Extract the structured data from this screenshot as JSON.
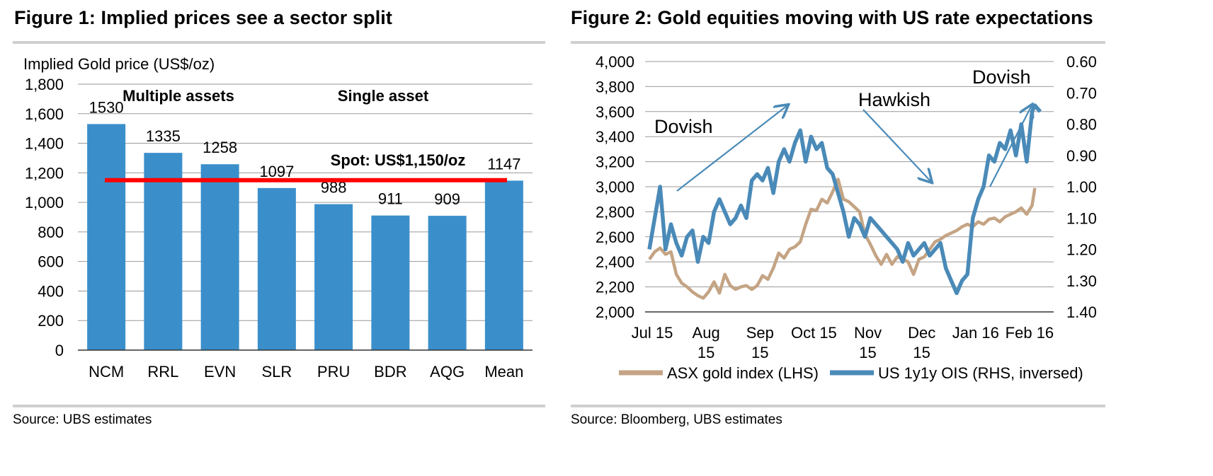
{
  "figure1": {
    "title": "Figure 1: Implied prices see a sector split",
    "source": "Source:  UBS estimates",
    "chart_data": {
      "type": "bar",
      "title": "Figure 1: Implied prices see a sector split",
      "ylabel": "Implied Gold price (US$/oz)",
      "xlabel": "",
      "ylim": [
        0,
        1800
      ],
      "yticks": [
        0,
        200,
        400,
        600,
        800,
        1000,
        1200,
        1400,
        1600,
        1800
      ],
      "ytick_labels": [
        "0",
        "200",
        "400",
        "600",
        "800",
        "1,000",
        "1,200",
        "1,400",
        "1,600",
        "1,800"
      ],
      "categories": [
        "NCM",
        "RRL",
        "EVN",
        "SLR",
        "PRU",
        "BDR",
        "AQG",
        "Mean"
      ],
      "values": [
        1530,
        1335,
        1258,
        1097,
        988,
        911,
        909,
        1147
      ],
      "value_labels": [
        "1530",
        "1335",
        "1258",
        "1097",
        "988",
        "911",
        "909",
        "1147"
      ],
      "bar_color": "#3a8fcb",
      "grid": true,
      "annotations": {
        "group1": "Multiple assets",
        "group2": "Single asset",
        "spot_label": "Spot: US$1,150/oz",
        "spot_value": 1150,
        "spot_color": "#ff0000"
      }
    }
  },
  "figure2": {
    "title": "Figure 2: Gold equities moving with US rate expectations",
    "source": "Source:  Bloomberg, UBS estimates",
    "chart_data": {
      "type": "line",
      "title": "Figure 2: Gold equities moving with US rate expectations",
      "left_axis": {
        "ylim": [
          2000,
          4000
        ],
        "ticks": [
          2000,
          2200,
          2400,
          2600,
          2800,
          3000,
          3200,
          3400,
          3600,
          3800,
          4000
        ],
        "tick_labels": [
          "2,000",
          "2,200",
          "2,400",
          "2,600",
          "2,800",
          "3,000",
          "3,200",
          "3,400",
          "3,600",
          "3,800",
          "4,000"
        ]
      },
      "right_axis": {
        "ylim": [
          1.4,
          0.6
        ],
        "inverted": true,
        "ticks": [
          0.6,
          0.7,
          0.8,
          0.9,
          1.0,
          1.1,
          1.2,
          1.3,
          1.4
        ],
        "tick_labels": [
          "0.60",
          "0.70",
          "0.80",
          "0.90",
          "1.00",
          "1.10",
          "1.20",
          "1.30",
          "1.40"
        ]
      },
      "x_months": [
        {
          "l1": "Jul 15",
          "l2": "",
          "t": 0
        },
        {
          "l1": "Aug",
          "l2": "15",
          "t": 1
        },
        {
          "l1": "Sep",
          "l2": "15",
          "t": 2
        },
        {
          "l1": "Oct 15",
          "l2": "",
          "t": 3
        },
        {
          "l1": "Nov",
          "l2": "15",
          "t": 4
        },
        {
          "l1": "Dec",
          "l2": "15",
          "t": 5
        },
        {
          "l1": "Jan 16",
          "l2": "",
          "t": 6
        },
        {
          "l1": "Feb 16",
          "l2": "",
          "t": 7
        }
      ],
      "series": [
        {
          "name": "ASX gold index (LHS)",
          "axis": "left",
          "color": "#c4a484",
          "x": [
            0,
            0.1,
            0.2,
            0.3,
            0.4,
            0.5,
            0.6,
            0.7,
            0.8,
            0.9,
            1.0,
            1.1,
            1.2,
            1.3,
            1.4,
            1.5,
            1.6,
            1.7,
            1.8,
            1.9,
            2.0,
            2.1,
            2.2,
            2.3,
            2.4,
            2.5,
            2.6,
            2.7,
            2.8,
            2.9,
            3.0,
            3.1,
            3.2,
            3.3,
            3.4,
            3.5,
            3.6,
            3.7,
            3.8,
            3.9,
            4.0,
            4.1,
            4.2,
            4.3,
            4.4,
            4.5,
            4.6,
            4.7,
            4.8,
            4.9,
            5.0,
            5.1,
            5.2,
            5.3,
            5.4,
            5.5,
            5.6,
            5.7,
            5.8,
            5.9,
            6.0,
            6.1,
            6.2,
            6.3,
            6.4,
            6.5,
            6.6,
            6.7,
            6.8,
            6.9,
            7.0,
            7.1,
            7.15
          ],
          "values": [
            2420,
            2480,
            2510,
            2460,
            2480,
            2300,
            2230,
            2200,
            2160,
            2130,
            2110,
            2160,
            2240,
            2150,
            2300,
            2210,
            2180,
            2200,
            2210,
            2180,
            2210,
            2290,
            2260,
            2350,
            2470,
            2430,
            2500,
            2520,
            2560,
            2700,
            2820,
            2810,
            2900,
            2870,
            2960,
            3060,
            2900,
            2880,
            2840,
            2800,
            2620,
            2540,
            2450,
            2380,
            2460,
            2380,
            2440,
            2420,
            2400,
            2300,
            2420,
            2440,
            2500,
            2560,
            2580,
            2610,
            2630,
            2650,
            2680,
            2700,
            2680,
            2720,
            2700,
            2740,
            2750,
            2720,
            2760,
            2780,
            2800,
            2830,
            2780,
            2850,
            2990
          ]
        },
        {
          "name": "US 1y1y OIS (RHS, inversed)",
          "axis": "right",
          "color": "#4a8ab8",
          "x": [
            0,
            0.1,
            0.2,
            0.3,
            0.4,
            0.5,
            0.6,
            0.7,
            0.8,
            0.9,
            1.0,
            1.1,
            1.2,
            1.3,
            1.4,
            1.5,
            1.6,
            1.7,
            1.8,
            1.9,
            2.0,
            2.1,
            2.2,
            2.3,
            2.4,
            2.5,
            2.6,
            2.7,
            2.8,
            2.9,
            3.0,
            3.1,
            3.2,
            3.3,
            3.4,
            3.5,
            3.6,
            3.7,
            3.8,
            3.9,
            4.0,
            4.1,
            4.2,
            4.3,
            4.4,
            4.5,
            4.6,
            4.7,
            4.8,
            4.9,
            5.0,
            5.1,
            5.2,
            5.3,
            5.4,
            5.5,
            5.6,
            5.7,
            5.8,
            5.9,
            6.0,
            6.1,
            6.2,
            6.3,
            6.4,
            6.5,
            6.6,
            6.7,
            6.8,
            6.9,
            7.0,
            7.1,
            7.15,
            7.25
          ],
          "values": [
            1.2,
            1.1,
            1.0,
            1.2,
            1.12,
            1.18,
            1.22,
            1.16,
            1.14,
            1.24,
            1.16,
            1.18,
            1.08,
            1.04,
            1.08,
            1.12,
            1.1,
            1.06,
            1.1,
            0.98,
            0.96,
            0.98,
            0.94,
            1.02,
            0.92,
            0.88,
            0.92,
            0.86,
            0.82,
            0.92,
            0.84,
            0.88,
            0.86,
            0.94,
            0.96,
            1.02,
            1.08,
            1.16,
            1.1,
            1.12,
            1.16,
            1.1,
            1.12,
            1.14,
            1.16,
            1.18,
            1.2,
            1.24,
            1.18,
            1.22,
            1.2,
            1.18,
            1.22,
            1.2,
            1.18,
            1.26,
            1.3,
            1.34,
            1.3,
            1.28,
            1.1,
            1.04,
            1.0,
            0.9,
            0.92,
            0.86,
            0.88,
            0.82,
            0.9,
            0.8,
            0.92,
            0.76,
            0.74,
            0.76
          ]
        }
      ],
      "annotations": {
        "dovish1": "Dovish",
        "hawkish": "Hawkish",
        "dovish2": "Dovish",
        "arrow_color": "#4a8ab8"
      },
      "legend": "bottom",
      "grid": true
    }
  }
}
